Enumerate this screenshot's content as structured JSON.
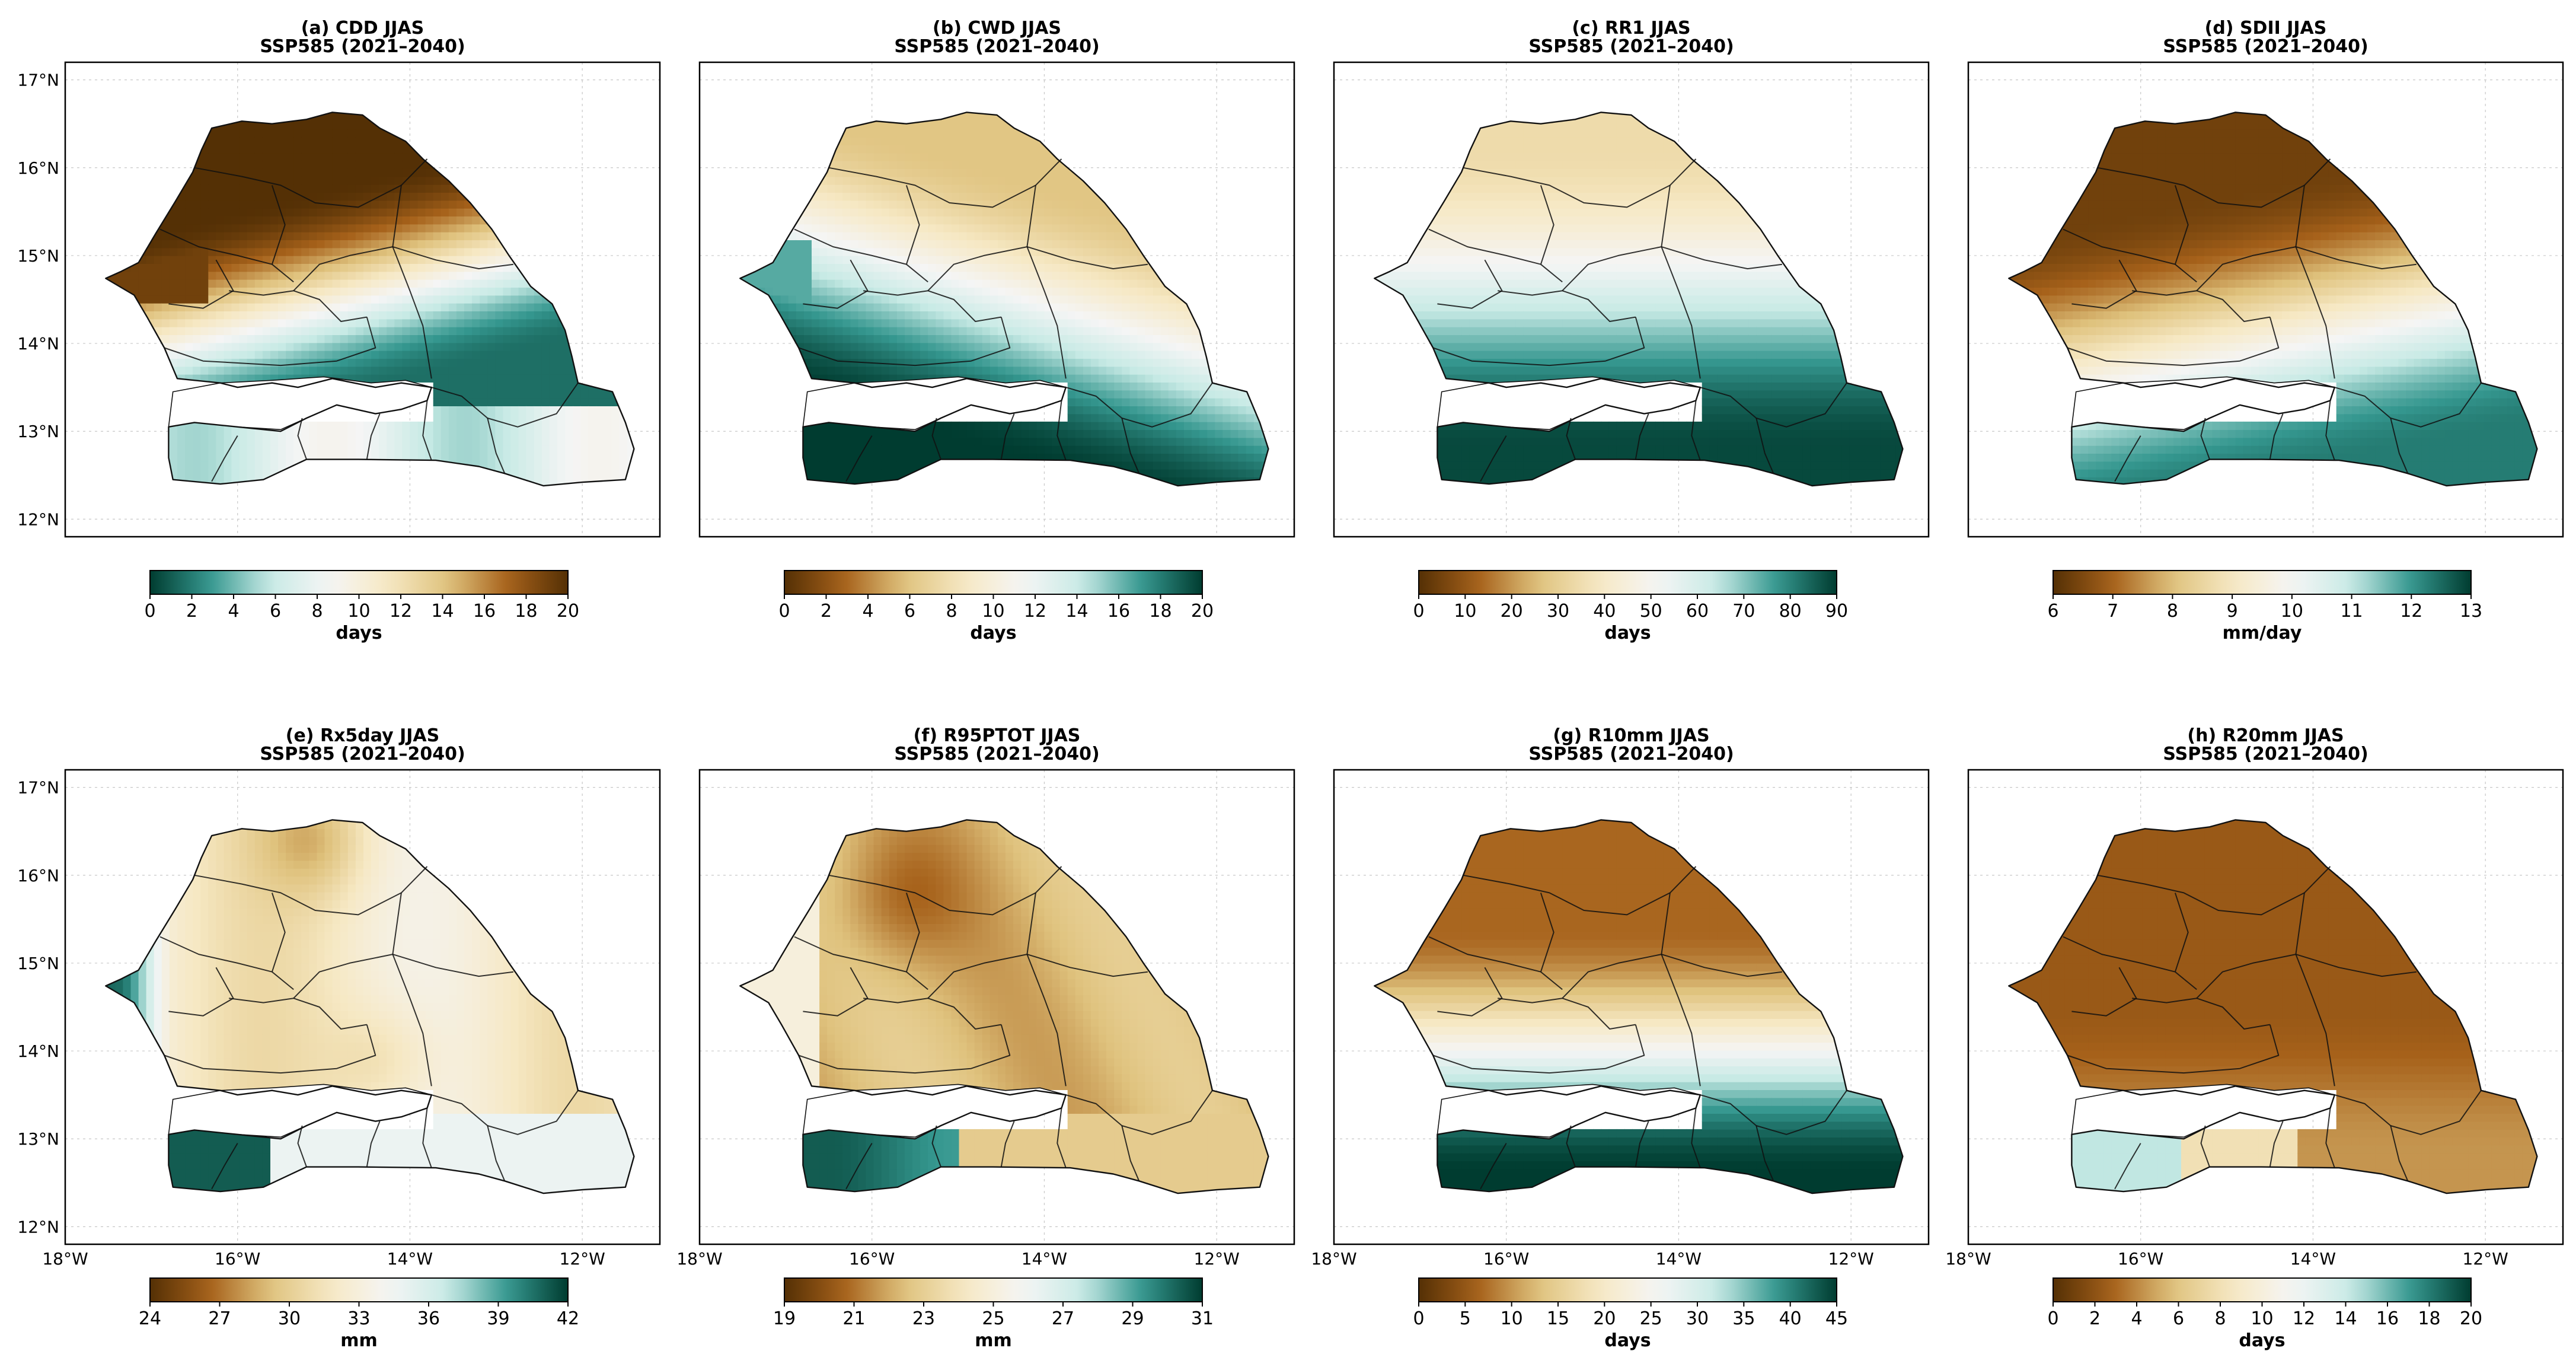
{
  "figure": {
    "region": "Senegal",
    "scenario_label": "SSP585 (2021–2040)",
    "lat_ticks": [
      "17°N",
      "16°N",
      "15°N",
      "14°N",
      "13°N",
      "12°N"
    ],
    "lon_ticks": [
      "18°W",
      "16°W",
      "14°W",
      "12°W"
    ],
    "colors": {
      "brown_dark": "#543005",
      "brown_mid": "#a6611a",
      "tan": "#dfc27d",
      "cream": "#f6e8c3",
      "white": "#f5f5f5",
      "teal_light": "#c7eae5",
      "teal_mid": "#35978f",
      "teal_dark": "#003c30"
    }
  },
  "chart_data": [
    {
      "type": "heatmap",
      "id": "a",
      "title": "(a) CDD JJAS",
      "subtitle": "SSP585 (2021–2040)",
      "colormap": "BrBG_r",
      "unit": "days",
      "range": [
        0,
        20
      ],
      "ticks": [
        "0",
        "2",
        "4",
        "6",
        "8",
        "10",
        "12",
        "14",
        "16",
        "18",
        "20"
      ],
      "pattern": "dry north (high CDD ~20 days), lower CDD (~4-8 days) in the south and Casamance"
    },
    {
      "type": "heatmap",
      "id": "b",
      "title": "(b) CWD JJAS",
      "subtitle": "SSP585 (2021–2040)",
      "colormap": "BrBG",
      "unit": "days",
      "range": [
        0,
        20
      ],
      "ticks": [
        "0",
        "2",
        "4",
        "6",
        "8",
        "10",
        "12",
        "14",
        "16",
        "18",
        "20"
      ],
      "pattern": "low CWD (~8 days) in the north, high CWD (~18-20 days) in the south"
    },
    {
      "type": "heatmap",
      "id": "c",
      "title": "(c) RR1 JJAS",
      "subtitle": "SSP585 (2021–2040)",
      "colormap": "BrBG",
      "unit": "days",
      "range": [
        0,
        90
      ],
      "ticks": [
        "0",
        "10",
        "20",
        "30",
        "40",
        "50",
        "60",
        "70",
        "80",
        "90"
      ],
      "pattern": "~35 days in the north increasing to ~85 days in the south"
    },
    {
      "type": "heatmap",
      "id": "d",
      "title": "(d) SDII JJAS",
      "subtitle": "SSP585 (2021–2040)",
      "colormap": "BrBG",
      "unit": "mm/day",
      "range": [
        6,
        13
      ],
      "ticks": [
        "6",
        "7",
        "8",
        "9",
        "10",
        "11",
        "12",
        "13"
      ],
      "pattern": "~6-7 mm/day in the north, ~11 mm/day in the south"
    },
    {
      "type": "heatmap",
      "id": "e",
      "title": "(e) Rx5day JJAS",
      "subtitle": "SSP585 (2021–2040)",
      "colormap": "BrBG",
      "unit": "mm",
      "range": [
        24,
        42
      ],
      "ticks": [
        "24",
        "27",
        "30",
        "33",
        "36",
        "39",
        "42"
      ],
      "pattern": "~30 mm in interior, higher (~38-42 mm) along the west coast and far southwest"
    },
    {
      "type": "heatmap",
      "id": "f",
      "title": "(f) R95PTOT JJAS",
      "subtitle": "SSP585 (2021–2040)",
      "colormap": "BrBG",
      "unit": "mm",
      "range": [
        19,
        31
      ],
      "ticks": [
        "19",
        "21",
        "23",
        "25",
        "27",
        "29",
        "31"
      ],
      "pattern": "~21-24 mm over most of the country, ~30 mm in the far southwest"
    },
    {
      "type": "heatmap",
      "id": "g",
      "title": "(g) R10mm JJAS",
      "subtitle": "SSP585 (2021–2040)",
      "colormap": "BrBG",
      "unit": "days",
      "range": [
        0,
        45
      ],
      "ticks": [
        "0",
        "5",
        "10",
        "15",
        "20",
        "25",
        "30",
        "35",
        "40",
        "45"
      ],
      "pattern": "~8 days in the north, ~40-45 days in the south"
    },
    {
      "type": "heatmap",
      "id": "h",
      "title": "(h) R20mm JJAS",
      "subtitle": "SSP585 (2021–2040)",
      "colormap": "BrBG",
      "unit": "days",
      "range": [
        0,
        20
      ],
      "ticks": [
        "0",
        "2",
        "4",
        "6",
        "8",
        "10",
        "12",
        "14",
        "16",
        "18",
        "20"
      ],
      "pattern": "~2-4 days over most of the country, ~12-14 days in the far southwest"
    }
  ]
}
